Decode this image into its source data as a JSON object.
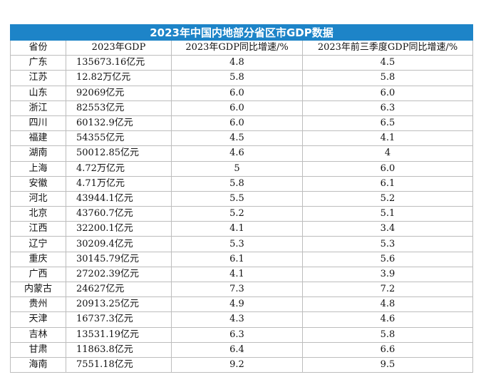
{
  "title": "2023年中国内地部分省区市GDP数据",
  "headers": [
    "省份",
    "2023年GDP",
    "2023年GDP同比增速/%",
    "2023年前三季度GDP同比增速/%"
  ],
  "rows": [
    {
      "province": "广东",
      "gdp": "135673.16亿元",
      "growth": "4.8",
      "q3_growth": "4.5"
    },
    {
      "province": "江苏",
      "gdp": "12.82万亿元",
      "growth": "5.8",
      "q3_growth": "5.8"
    },
    {
      "province": "山东",
      "gdp": "92069亿元",
      "growth": "6.0",
      "q3_growth": "6.0"
    },
    {
      "province": "浙江",
      "gdp": "82553亿元",
      "growth": "6.0",
      "q3_growth": "6.3"
    },
    {
      "province": "四川",
      "gdp": "60132.9亿元",
      "growth": "6.0",
      "q3_growth": "6.5"
    },
    {
      "province": "福建",
      "gdp": "54355亿元",
      "growth": "4.5",
      "q3_growth": "4.1"
    },
    {
      "province": "湖南",
      "gdp": "50012.85亿元",
      "growth": "4.6",
      "q3_growth": "4"
    },
    {
      "province": "上海",
      "gdp": "4.72万亿元",
      "growth": "5",
      "q3_growth": "6.0"
    },
    {
      "province": "安徽",
      "gdp": "4.71万亿元",
      "growth": "5.8",
      "q3_growth": "6.1"
    },
    {
      "province": "河北",
      "gdp": "43944.1亿元",
      "growth": "5.5",
      "q3_growth": "5.2"
    },
    {
      "province": "北京",
      "gdp": "43760.7亿元",
      "growth": "5.2",
      "q3_growth": "5.1"
    },
    {
      "province": "江西",
      "gdp": "32200.1亿元",
      "growth": "4.1",
      "q3_growth": "3.4"
    },
    {
      "province": "辽宁",
      "gdp": "30209.4亿元",
      "growth": "5.3",
      "q3_growth": "5.3"
    },
    {
      "province": "重庆",
      "gdp": "30145.79亿元",
      "growth": "6.1",
      "q3_growth": "5.6"
    },
    {
      "province": "广西",
      "gdp": "27202.39亿元",
      "growth": "4.1",
      "q3_growth": "3.9"
    },
    {
      "province": "内蒙古",
      "gdp": "24627亿元",
      "growth": "7.3",
      "q3_growth": "7.2"
    },
    {
      "province": "贵州",
      "gdp": "20913.25亿元",
      "growth": "4.9",
      "q3_growth": "4.8"
    },
    {
      "province": "天津",
      "gdp": "16737.3亿元",
      "growth": "4.3",
      "q3_growth": "4.6"
    },
    {
      "province": "吉林",
      "gdp": "13531.19亿元",
      "growth": "6.3",
      "q3_growth": "5.8"
    },
    {
      "province": "甘肃",
      "gdp": "11863.8亿元",
      "growth": "6.4",
      "q3_growth": "6.6"
    },
    {
      "province": "海南",
      "gdp": "7551.18亿元",
      "growth": "9.2",
      "q3_growth": "9.5"
    }
  ],
  "colors": {
    "title_bg": "#1d84c8",
    "title_text": "#ffffff",
    "grid": "#bdbdbd"
  }
}
